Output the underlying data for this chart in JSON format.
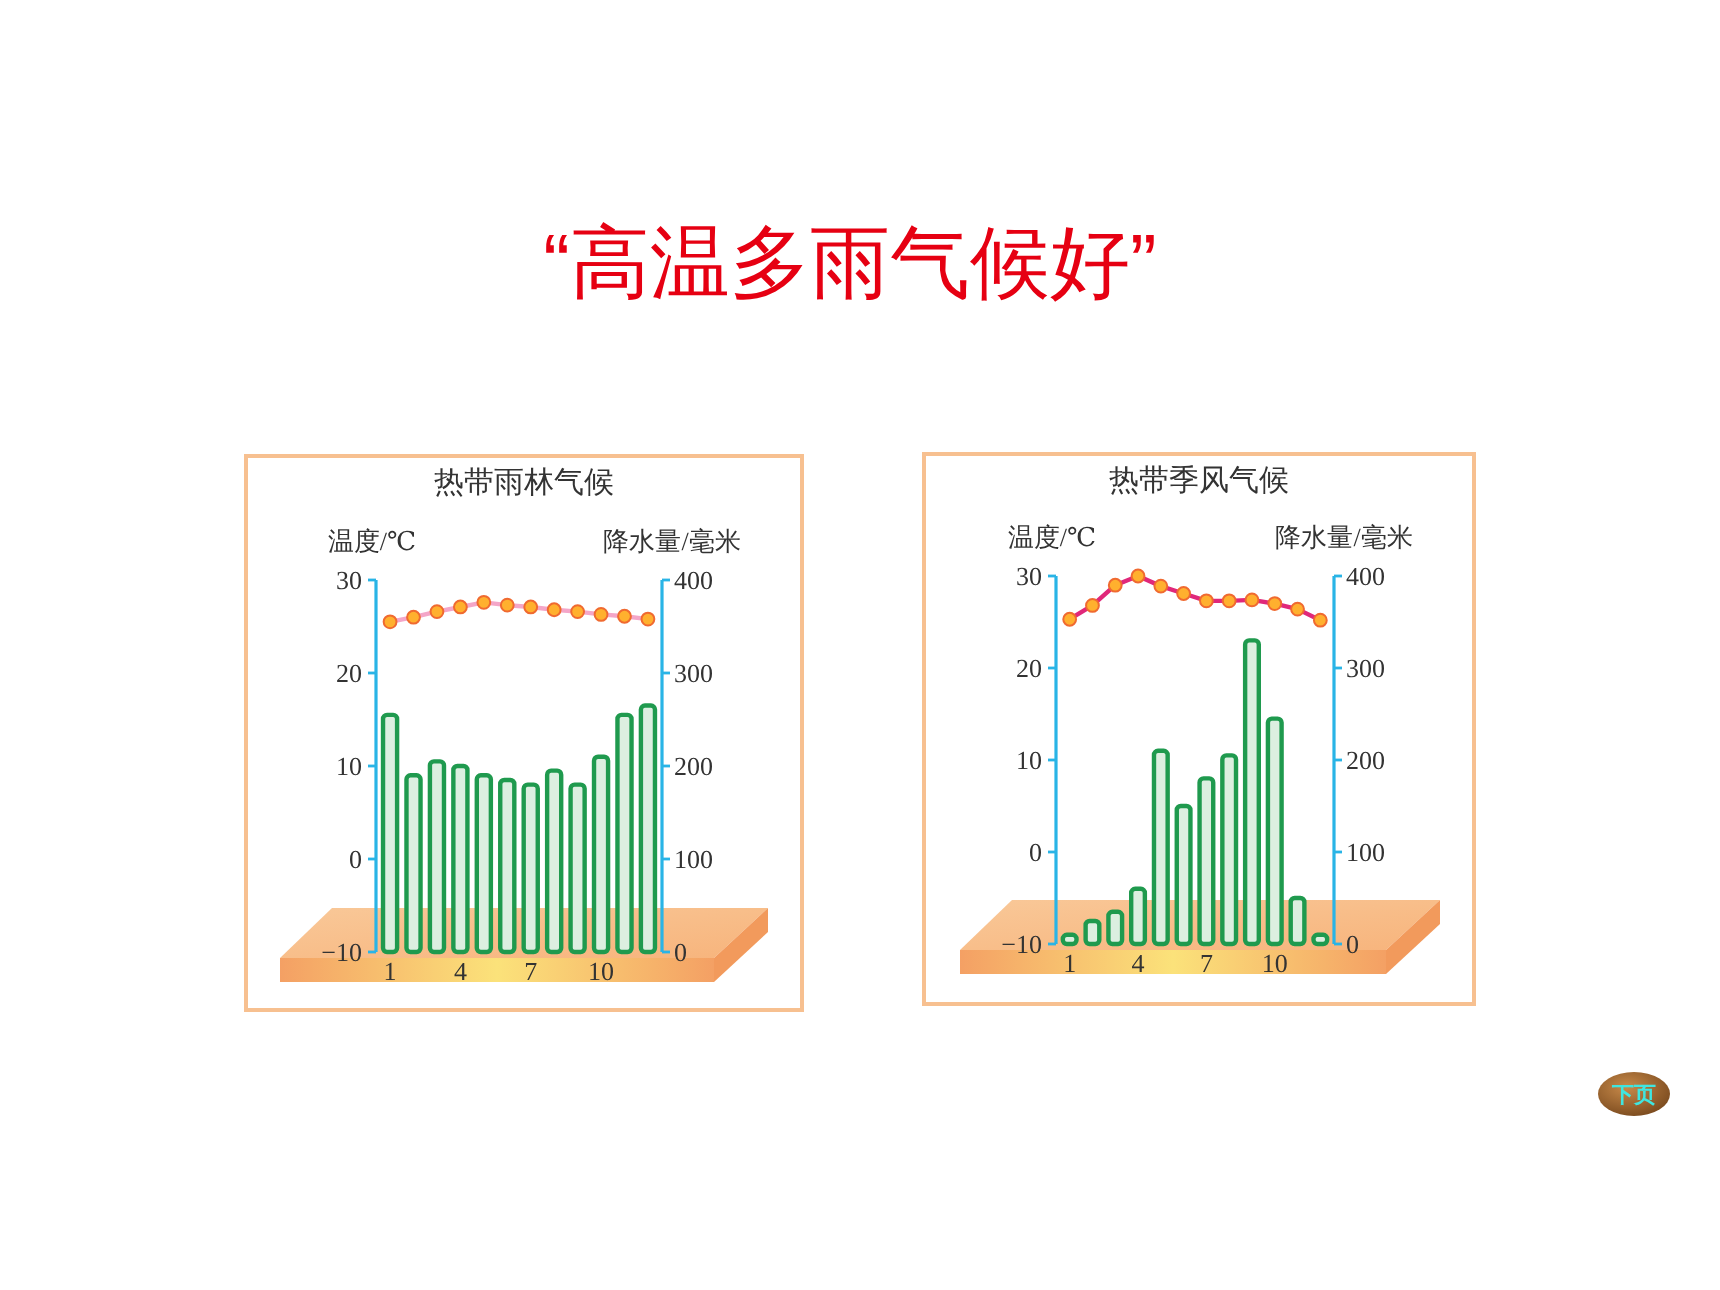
{
  "chart_data": [
    {
      "type": "other",
      "title": "“高温多雨气候好”",
      "annotations": [
        "下页"
      ]
    },
    {
      "type": "bar",
      "title": "热带雨林气候",
      "categories": [
        "1",
        null,
        null,
        "4",
        null,
        null,
        "7",
        null,
        null,
        "10",
        null,
        null
      ],
      "ylabel": "温度/℃",
      "y2label": "降水量/毫米",
      "ylim": [
        -10,
        30
      ],
      "yticks": [
        -10,
        0,
        10,
        20,
        30
      ],
      "y2lim": [
        0,
        400
      ],
      "y2ticks": [
        0,
        100,
        200,
        300,
        400
      ],
      "series": [
        {
          "type": "bar",
          "axis": "y2",
          "color": "#1f9a4e",
          "values": [
            255,
            190,
            205,
            200,
            190,
            185,
            180,
            195,
            180,
            210,
            255,
            265
          ]
        },
        {
          "type": "line",
          "axis": "y",
          "color": "#f4a6c8",
          "marker": "circle",
          "colors": [
            "#ffb02e",
            "#ffb02e",
            "#ffb02e",
            "#ffb02e",
            "#ffb02e",
            "#ffb02e",
            "#ffb02e",
            "#ffb02e",
            "#ffb02e",
            "#ffb02e",
            "#ffb02e",
            "#ffb02e"
          ],
          "values": [
            25.5,
            26,
            26.6,
            27.1,
            27.6,
            27.3,
            27.1,
            26.8,
            26.6,
            26.3,
            26.1,
            25.8
          ]
        }
      ]
    },
    {
      "type": "bar",
      "title": "热带季风气候",
      "categories": [
        "1",
        null,
        null,
        "4",
        null,
        null,
        "7",
        null,
        null,
        "10",
        null,
        null
      ],
      "ylabel": "温度/℃",
      "y2label": "降水量/毫米",
      "ylim": [
        -10,
        30
      ],
      "yticks": [
        -10,
        0,
        10,
        20,
        30
      ],
      "y2lim": [
        0,
        400
      ],
      "y2ticks": [
        0,
        100,
        200,
        300,
        400
      ],
      "series": [
        {
          "type": "bar",
          "axis": "y2",
          "color": "#1f9a4e",
          "values": [
            10,
            25,
            35,
            60,
            210,
            150,
            180,
            205,
            330,
            245,
            50,
            10
          ]
        },
        {
          "type": "line",
          "axis": "y",
          "color": "#e0287a",
          "marker": "circle",
          "colors": [
            "#ffb02e",
            "#ffb02e",
            "#ffb02e",
            "#ffb02e",
            "#ffb02e",
            "#ffb02e",
            "#ffb02e",
            "#ffb02e",
            "#ffb02e",
            "#ffb02e",
            "#ffb02e",
            "#ffb02e"
          ],
          "values": [
            25.3,
            26.8,
            29,
            30,
            28.9,
            28.1,
            27.3,
            27.3,
            27.4,
            27,
            26.4,
            25.2
          ]
        }
      ]
    }
  ]
}
